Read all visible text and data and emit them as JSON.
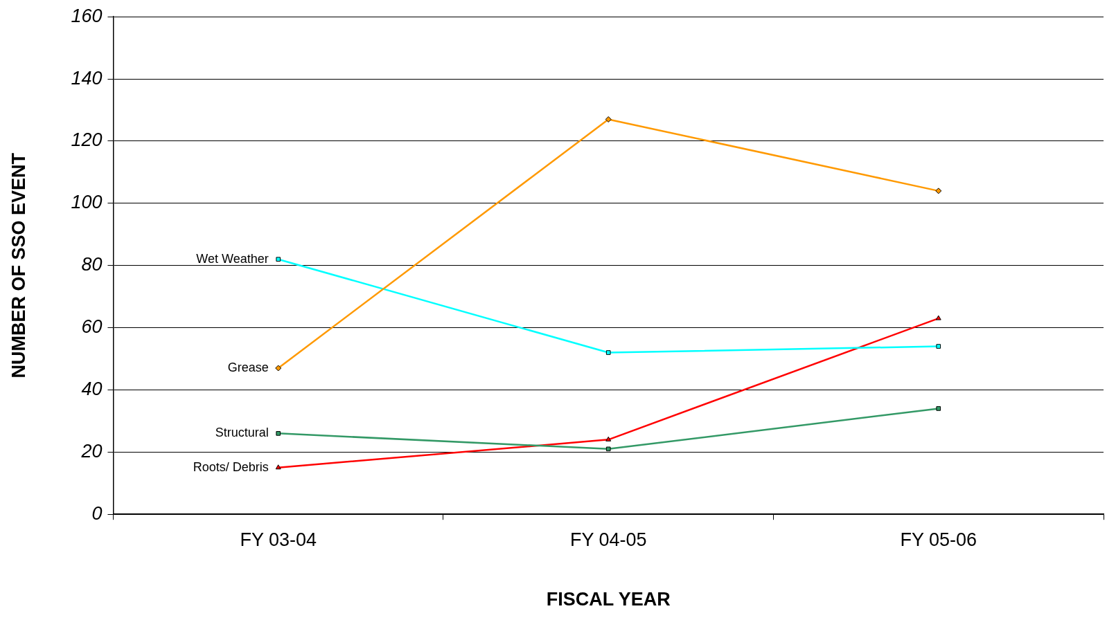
{
  "chart_data": {
    "type": "line",
    "xlabel": "FISCAL YEAR",
    "ylabel": "NUMBER OF SSO EVENT",
    "categories": [
      "FY 03-04",
      "FY 04-05",
      "FY 05-06"
    ],
    "series": [
      {
        "name": "Grease",
        "color": "#ff9900",
        "marker": "diamond",
        "values": [
          47,
          127,
          104
        ]
      },
      {
        "name": "Wet Weather",
        "color": "#00ffff",
        "marker": "square",
        "values": [
          82,
          52,
          54
        ]
      },
      {
        "name": "Structural",
        "color": "#339966",
        "marker": "square",
        "values": [
          26,
          21,
          34
        ]
      },
      {
        "name": "Roots/ Debris",
        "color": "#ff0000",
        "marker": "triangle",
        "values": [
          15,
          24,
          63
        ]
      }
    ],
    "ylim": [
      0,
      160
    ],
    "yticks": [
      0,
      20,
      40,
      60,
      80,
      100,
      120,
      140,
      160
    ],
    "grid": "y",
    "legend": false
  }
}
